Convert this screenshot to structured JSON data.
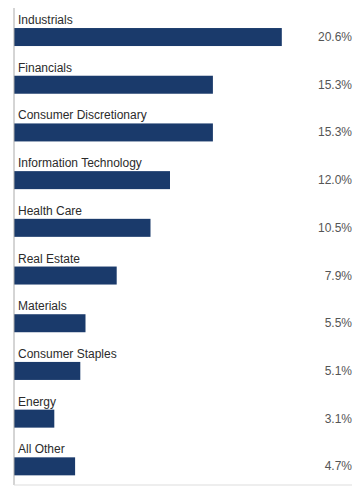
{
  "chart_data": {
    "type": "bar",
    "orientation": "horizontal",
    "categories": [
      "Industrials",
      "Financials",
      "Consumer Discretionary",
      "Information Technology",
      "Health Care",
      "Real Estate",
      "Materials",
      "Consumer Staples",
      "Energy",
      "All Other"
    ],
    "values": [
      20.6,
      15.3,
      15.3,
      12.0,
      10.5,
      7.9,
      5.5,
      5.1,
      3.1,
      4.7
    ],
    "value_labels": [
      "20.6%",
      "15.3%",
      "15.3%",
      "12.0%",
      "10.5%",
      "7.9%",
      "5.5%",
      "5.1%",
      "3.1%",
      "4.7%"
    ],
    "color": "#1a3a6b",
    "xlim": [
      0,
      26
    ],
    "data_labels": true,
    "grid": false
  }
}
